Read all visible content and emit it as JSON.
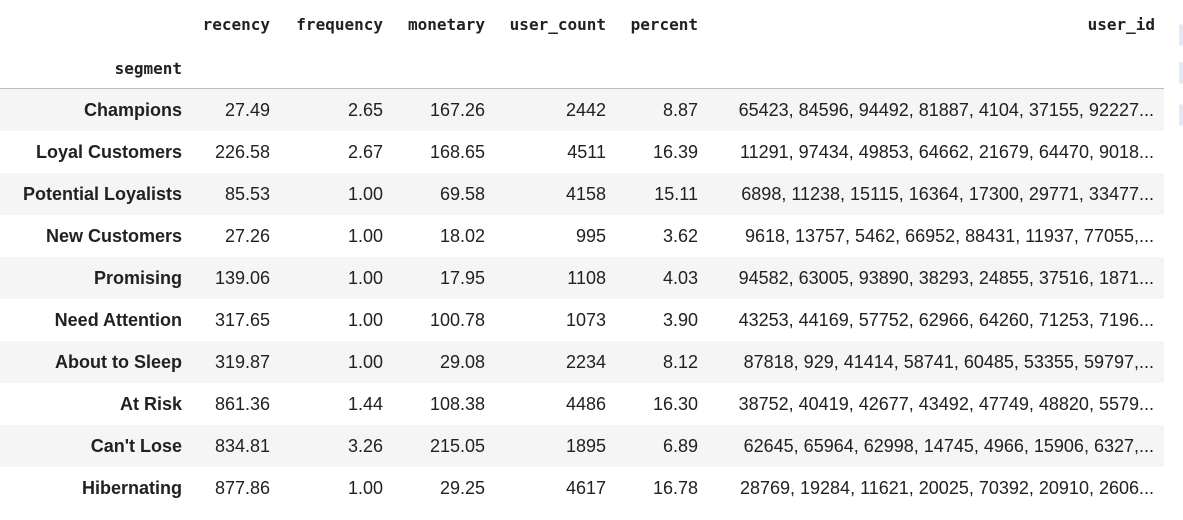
{
  "table": {
    "index_name": "segment",
    "columns": [
      "recency",
      "frequency",
      "monetary",
      "user_count",
      "percent",
      "user_id"
    ],
    "rows": [
      {
        "segment": "Champions",
        "recency": "27.49",
        "frequency": "2.65",
        "monetary": "167.26",
        "user_count": "2442",
        "percent": "8.87",
        "user_id": "65423, 84596, 94492, 81887, 4104, 37155, 92227..."
      },
      {
        "segment": "Loyal Customers",
        "recency": "226.58",
        "frequency": "2.67",
        "monetary": "168.65",
        "user_count": "4511",
        "percent": "16.39",
        "user_id": "11291, 97434, 49853, 64662, 21679, 64470, 9018..."
      },
      {
        "segment": "Potential Loyalists",
        "recency": "85.53",
        "frequency": "1.00",
        "monetary": "69.58",
        "user_count": "4158",
        "percent": "15.11",
        "user_id": "6898, 11238, 15115, 16364, 17300, 29771, 33477..."
      },
      {
        "segment": "New Customers",
        "recency": "27.26",
        "frequency": "1.00",
        "monetary": "18.02",
        "user_count": "995",
        "percent": "3.62",
        "user_id": "9618, 13757, 5462, 66952, 88431, 11937, 77055,..."
      },
      {
        "segment": "Promising",
        "recency": "139.06",
        "frequency": "1.00",
        "monetary": "17.95",
        "user_count": "1108",
        "percent": "4.03",
        "user_id": "94582, 63005, 93890, 38293, 24855, 37516, 1871..."
      },
      {
        "segment": "Need Attention",
        "recency": "317.65",
        "frequency": "1.00",
        "monetary": "100.78",
        "user_count": "1073",
        "percent": "3.90",
        "user_id": "43253, 44169, 57752, 62966, 64260, 71253, 7196..."
      },
      {
        "segment": "About to Sleep",
        "recency": "319.87",
        "frequency": "1.00",
        "monetary": "29.08",
        "user_count": "2234",
        "percent": "8.12",
        "user_id": "87818, 929, 41414, 58741, 60485, 53355, 59797,..."
      },
      {
        "segment": "At Risk",
        "recency": "861.36",
        "frequency": "1.44",
        "monetary": "108.38",
        "user_count": "4486",
        "percent": "16.30",
        "user_id": "38752, 40419, 42677, 43492, 47749, 48820, 5579..."
      },
      {
        "segment": "Can't Lose",
        "recency": "834.81",
        "frequency": "3.26",
        "monetary": "215.05",
        "user_count": "1895",
        "percent": "6.89",
        "user_id": "62645, 65964, 62998, 14745, 4966, 15906, 6327,..."
      },
      {
        "segment": "Hibernating",
        "recency": "877.86",
        "frequency": "1.00",
        "monetary": "29.25",
        "user_count": "4617",
        "percent": "16.78",
        "user_id": "28769, 19284, 11621, 20025, 70392, 20910, 2606..."
      }
    ]
  }
}
